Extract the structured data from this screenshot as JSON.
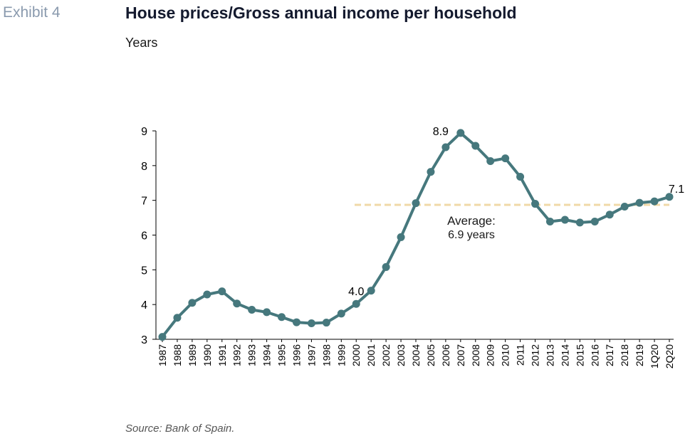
{
  "header": {
    "exhibit": "Exhibit 4",
    "title": "House prices/Gross annual income per household",
    "subtitle": "Years"
  },
  "footer": {
    "source": "Source: Bank of Spain."
  },
  "colors": {
    "line": "#46787d",
    "average": "#f0d9a8",
    "axis": "#000000"
  },
  "chart_data": {
    "type": "line",
    "title": "House prices/Gross annual income per household",
    "ylabel": "Years",
    "xlabel": "",
    "ylim": [
      3,
      9
    ],
    "yticks": [
      3,
      4,
      5,
      6,
      7,
      8,
      9
    ],
    "grid": false,
    "categories": [
      "1987",
      "1988",
      "1989",
      "1990",
      "1991",
      "1992",
      "1993",
      "1994",
      "1995",
      "1996",
      "1997",
      "1998",
      "1999",
      "2000",
      "2001",
      "2002",
      "2003",
      "2004",
      "2005",
      "2006",
      "2007",
      "2008",
      "2009",
      "2010",
      "2011",
      "2012",
      "2013",
      "2014",
      "2015",
      "2016",
      "2017",
      "2018",
      "2019",
      "1Q20",
      "2Q20"
    ],
    "series": [
      {
        "values": [
          3.07,
          3.62,
          4.05,
          4.29,
          4.38,
          4.03,
          3.85,
          3.78,
          3.64,
          3.49,
          3.46,
          3.48,
          3.74,
          4.02,
          4.4,
          5.08,
          5.94,
          6.92,
          7.82,
          8.53,
          8.94,
          8.57,
          8.13,
          8.21,
          7.68,
          6.9,
          6.39,
          6.44,
          6.36,
          6.39,
          6.59,
          6.82,
          6.93,
          6.97,
          7.1
        ]
      }
    ],
    "average": {
      "value": 6.87,
      "label_line1": "Average:",
      "label_line2": "6.9 years"
    },
    "annotations": [
      {
        "category": "2000",
        "text": "4.0"
      },
      {
        "category": "2007",
        "text": "8.9"
      },
      {
        "category": "2Q20",
        "text": "7.1"
      }
    ]
  }
}
